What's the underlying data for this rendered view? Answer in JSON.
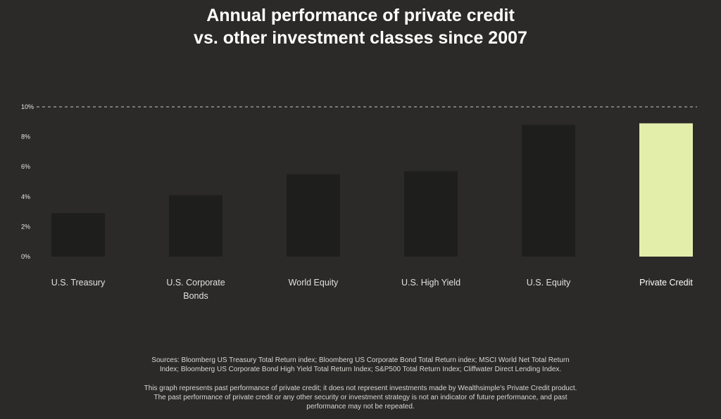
{
  "header": {
    "title_line1": "Annual performance of private credit",
    "title_line2": "vs. other investment classes since 2007"
  },
  "chart_data": {
    "type": "bar",
    "categories": [
      "U.S. Treasury",
      "U.S. Corporate Bonds",
      "World Equity",
      "U.S. High Yield",
      "U.S. Equity",
      "Private Credit"
    ],
    "category_label_lines": [
      [
        "U.S. Treasury"
      ],
      [
        "U.S. Corporate",
        "Bonds"
      ],
      [
        "World Equity"
      ],
      [
        "U.S. High Yield"
      ],
      [
        "U.S. Equity"
      ],
      [
        "Private Credit"
      ]
    ],
    "values": [
      2.9,
      4.1,
      5.5,
      5.7,
      8.8,
      8.9
    ],
    "y_ticks": [
      0,
      2,
      4,
      6,
      8,
      10
    ],
    "y_tick_labels": [
      "0%",
      "2%",
      "4%",
      "6%",
      "8%",
      "10%"
    ],
    "ylim": [
      0,
      10
    ],
    "reference_line": 10,
    "grid": false,
    "colors": {
      "bar": "#1e1e1d",
      "highlight_bar": "#e3eeab",
      "highlight_index": 5,
      "reference_line": "#c8c8c8",
      "tick_label": "#e8e6e1",
      "category_label": "#e2e0dc",
      "highlight_label": "#ffffff"
    }
  },
  "footer": {
    "sources_line1": "Sources: Bloomberg US Treasury Total Return index; Bloomberg US Corporate Bond Total Return index; MSCI World Net Total Return",
    "sources_line2": "Index; Bloomberg US Corporate Bond High Yield Total Return Index; S&P500 Total Return Index; Cliffwater Direct Lending Index.",
    "disclaimer_line1": "This graph represents past performance of private credit; it does not represent investments made by Wealthsimple's Private Credit product.",
    "disclaimer_line2": "The past performance of private credit or any other security or investment strategy is not an indicator of future performance, and past",
    "disclaimer_line3": "performance may not be repeated."
  }
}
